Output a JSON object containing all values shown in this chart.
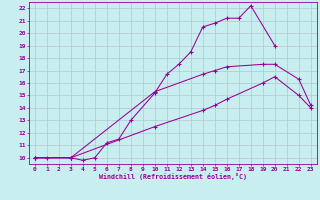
{
  "xlabel": "Windchill (Refroidissement éolien,°C)",
  "background_color": "#c8eef0",
  "grid_color": "#b0c8d0",
  "line_color": "#990099",
  "xlim": [
    -0.5,
    23.5
  ],
  "ylim": [
    9.5,
    22.5
  ],
  "xticks": [
    0,
    1,
    2,
    3,
    4,
    5,
    6,
    7,
    8,
    9,
    10,
    11,
    12,
    13,
    14,
    15,
    16,
    17,
    18,
    19,
    20,
    21,
    22,
    23
  ],
  "yticks": [
    10,
    11,
    12,
    13,
    14,
    15,
    16,
    17,
    18,
    19,
    20,
    21,
    22
  ],
  "curve1_x": [
    0,
    1,
    3,
    4,
    5,
    6,
    7,
    8,
    10,
    11,
    12,
    13,
    14,
    15,
    16,
    17,
    18,
    20
  ],
  "curve1_y": [
    10,
    10,
    10,
    9.8,
    10.0,
    11.2,
    11.5,
    13.0,
    15.2,
    16.7,
    17.5,
    18.5,
    20.5,
    20.8,
    21.2,
    21.2,
    22.2,
    19.0
  ],
  "curve2_x": [
    0,
    3,
    10,
    14,
    15,
    16,
    19,
    20,
    22,
    23
  ],
  "curve2_y": [
    10,
    10,
    15.3,
    16.7,
    17.0,
    17.3,
    17.5,
    17.5,
    16.3,
    14.2
  ],
  "curve3_x": [
    0,
    3,
    10,
    14,
    15,
    16,
    19,
    20,
    22,
    23
  ],
  "curve3_y": [
    10,
    10,
    12.5,
    13.8,
    14.2,
    14.7,
    16.0,
    16.5,
    15.0,
    14.0
  ]
}
